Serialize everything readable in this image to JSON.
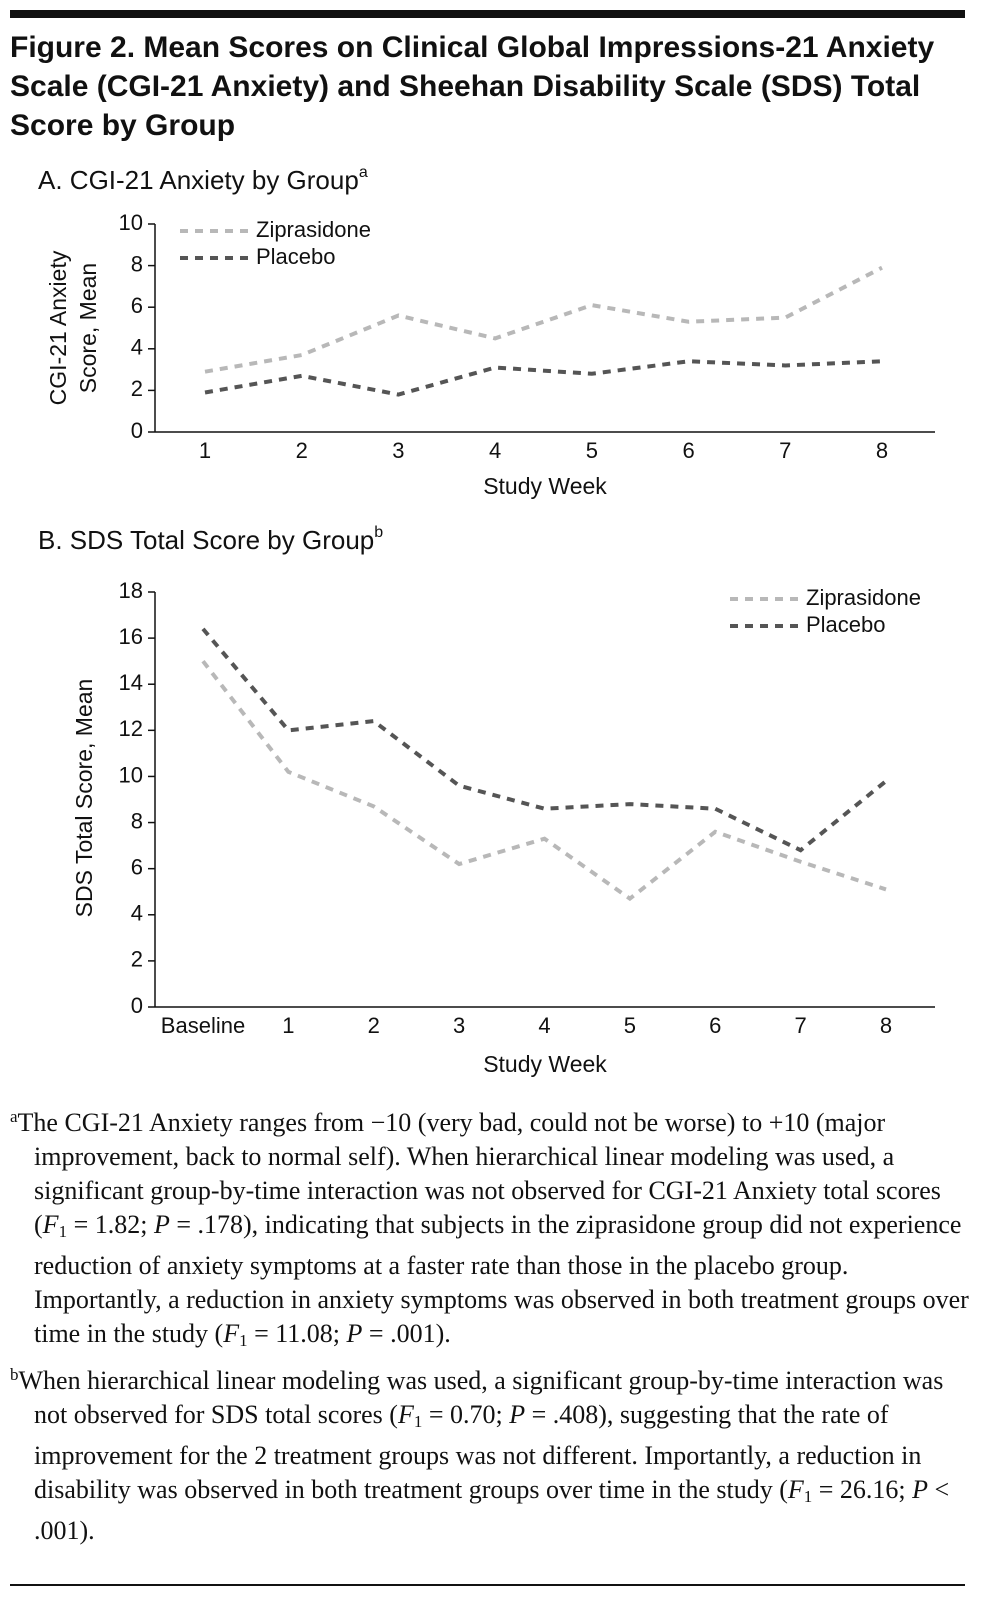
{
  "title": "Figure 2. Mean Scores on Clinical Global Impressions-21 Anxiety Scale (CGI-21 Anxiety) and Sheehan Disability Scale (SDS) Total Score by Group",
  "chart_data": [
    {
      "type": "line",
      "title": "A. CGI-21 Anxiety by Group",
      "title_note": "a",
      "x_label": "Study Week",
      "y_label": [
        "CGI-21 Anxiety",
        "Score, Mean"
      ],
      "categories": [
        "1",
        "2",
        "3",
        "4",
        "5",
        "6",
        "7",
        "8"
      ],
      "series": [
        {
          "name": "Ziprasidone",
          "color": "#b8b8b8",
          "values": [
            2.9,
            3.7,
            5.6,
            4.5,
            6.1,
            5.3,
            5.5,
            7.9
          ]
        },
        {
          "name": "Placebo",
          "color": "#555555",
          "values": [
            1.9,
            2.7,
            1.8,
            3.1,
            2.8,
            3.4,
            3.2,
            3.4
          ]
        }
      ],
      "ylim": [
        0,
        10
      ],
      "yticks": [
        0,
        2,
        4,
        6,
        8,
        10
      ],
      "legend": "upper left",
      "dashed": true
    },
    {
      "type": "line",
      "title": "B. SDS Total Score by Group",
      "title_note": "b",
      "x_label": "Study Week",
      "y_label": [
        "SDS Total Score, Mean"
      ],
      "categories": [
        "Baseline",
        "1",
        "2",
        "3",
        "4",
        "5",
        "6",
        "7",
        "8"
      ],
      "series": [
        {
          "name": "Ziprasidone",
          "color": "#b8b8b8",
          "values": [
            15.0,
            10.2,
            8.7,
            6.2,
            7.3,
            4.7,
            7.6,
            6.3,
            5.1
          ]
        },
        {
          "name": "Placebo",
          "color": "#555555",
          "values": [
            16.4,
            12.0,
            12.4,
            9.6,
            8.6,
            8.8,
            8.6,
            6.8,
            9.8
          ]
        }
      ],
      "ylim": [
        0,
        18
      ],
      "yticks": [
        0,
        2,
        4,
        6,
        8,
        10,
        12,
        14,
        16,
        18
      ],
      "legend": "upper right",
      "dashed": true
    }
  ],
  "footnotes": [
    {
      "marker": "a",
      "runs": [
        {
          "text": "The CGI-21 Anxiety ranges from −10 (very bad, could not be worse) to +10 (major improvement, back to normal self). When hierarchical linear modeling was used, a significant group-by-time interaction was not observed for CGI-21 Anxiety total scores ("
        },
        {
          "text": "F",
          "style": "italic"
        },
        {
          "text": "1",
          "style": "sub"
        },
        {
          "text": " = 1.82; "
        },
        {
          "text": "P",
          "style": "italic"
        },
        {
          "text": " = .178), indicating that subjects in the ziprasidone group did not experience reduction of anxiety symptoms at a faster rate than those in the placebo group. Importantly, a reduction in anxiety symptoms was observed in both treatment groups over time in the study ("
        },
        {
          "text": "F",
          "style": "italic"
        },
        {
          "text": "1",
          "style": "sub"
        },
        {
          "text": " = 11.08; "
        },
        {
          "text": "P",
          "style": "italic"
        },
        {
          "text": " = .001)."
        }
      ]
    },
    {
      "marker": "b",
      "runs": [
        {
          "text": "When hierarchical linear modeling was used, a significant group-by-time interaction was not observed for SDS total scores ("
        },
        {
          "text": "F",
          "style": "italic"
        },
        {
          "text": "1",
          "style": "sub"
        },
        {
          "text": " = 0.70; "
        },
        {
          "text": "P",
          "style": "italic"
        },
        {
          "text": " = .408), suggesting that the rate of improvement for the 2 treatment groups was not different. Importantly, a reduction in disability was observed in both treatment groups over time in the study ("
        },
        {
          "text": "F",
          "style": "italic"
        },
        {
          "text": "1",
          "style": "sub"
        },
        {
          "text": " = 26.16; "
        },
        {
          "text": "P",
          "style": "italic"
        },
        {
          "text": " < .001)."
        }
      ]
    }
  ]
}
